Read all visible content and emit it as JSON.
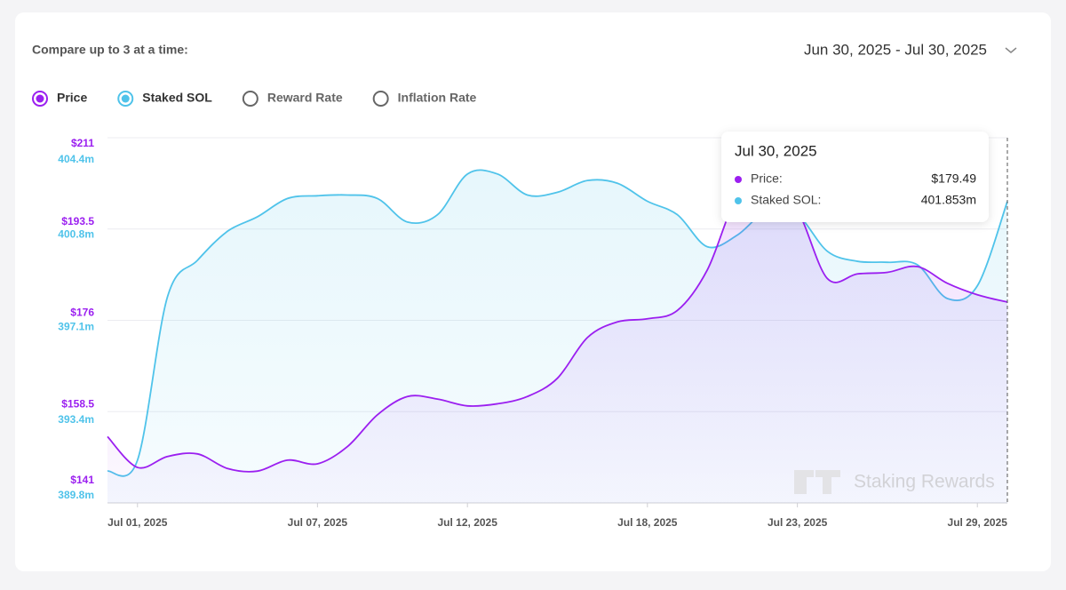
{
  "header": {
    "compare_label": "Compare up to 3 at a time:",
    "date_range": "Jun 30, 2025 - Jul 30, 2025"
  },
  "inactive_options": [
    "Reward Rate",
    "Inflation Rate"
  ],
  "tooltip": {
    "title": "Jul 30, 2025",
    "items": [
      {
        "name": "Price:",
        "label": "$179.49"
      },
      {
        "name": "Staked SOL:",
        "label": "401.853m"
      }
    ]
  },
  "watermark": "Staking Rewards",
  "chart_data": {
    "type": "line",
    "categories": [
      null,
      "Jul 01, 2025",
      null,
      null,
      null,
      null,
      null,
      "Jul 07, 2025",
      null,
      null,
      null,
      null,
      "Jul 12, 2025",
      null,
      null,
      null,
      null,
      null,
      "Jul 18, 2025",
      null,
      null,
      null,
      null,
      "Jul 23, 2025",
      null,
      null,
      null,
      null,
      null,
      "Jul 29, 2025",
      null
    ],
    "series": [
      {
        "name": "Price",
        "color": "#9b1ff0",
        "values": [
          153.7,
          147.8,
          149.9,
          150.4,
          147.6,
          147.1,
          149.2,
          148.5,
          151.8,
          157.9,
          161.4,
          160.9,
          159.6,
          160.0,
          161.4,
          164.9,
          172.7,
          175.7,
          176.3,
          177.9,
          185.7,
          199.7,
          202.3,
          197.1,
          184.0,
          184.9,
          185.2,
          186.3,
          183.1,
          180.9,
          179.49
        ]
      },
      {
        "name": "Staked SOL",
        "color": "#4fc3ea",
        "axis": "y2",
        "values": [
          391.07,
          391.51,
          398.04,
          399.5,
          400.66,
          401.24,
          401.97,
          402.08,
          402.11,
          401.97,
          401.03,
          401.32,
          402.95,
          402.95,
          402.11,
          402.22,
          402.69,
          402.58,
          401.86,
          401.32,
          400.04,
          400.51,
          401.5,
          401.32,
          399.86,
          399.46,
          399.42,
          399.32,
          397.97,
          398.48,
          401.853
        ]
      }
    ],
    "ylim": [
      141,
      211
    ],
    "yticks": [
      {
        "value": 141,
        "label": "$141"
      },
      {
        "value": 158.5,
        "label": "$158.5"
      },
      {
        "value": 176,
        "label": "$176"
      },
      {
        "value": 193.5,
        "label": "$193.5"
      },
      {
        "value": 211,
        "label": "$211"
      }
    ],
    "y2lim": [
      389.8,
      404.4
    ],
    "y2ticks": [
      {
        "value": 389.8,
        "label": "389.8m"
      },
      {
        "value": 393.4,
        "label": "393.4m"
      },
      {
        "value": 397.1,
        "label": "397.1m"
      },
      {
        "value": 400.8,
        "label": "400.8m"
      },
      {
        "value": 404.4,
        "label": "404.4m"
      }
    ],
    "grid": true
  }
}
